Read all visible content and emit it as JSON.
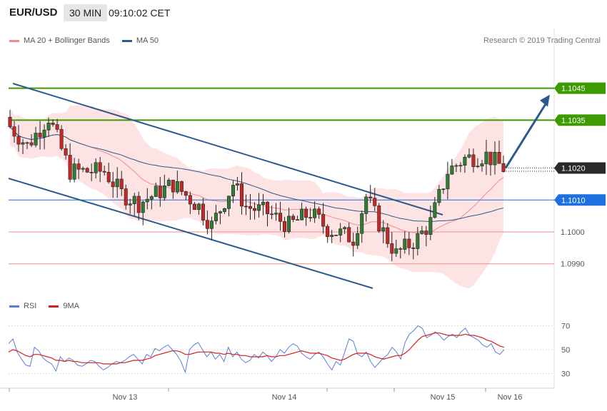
{
  "header": {
    "pair": "EUR/USD",
    "timeframe": "30 MIN",
    "time": "09:10:02 CET"
  },
  "legend": {
    "items": [
      {
        "label": "MA 20 + Bollinger Bands",
        "color": "#f08c8c"
      },
      {
        "label": "MA 50",
        "color": "#2b5a8c"
      }
    ]
  },
  "credit": "Research © 2019 Trading Central",
  "rsi_legend": {
    "items": [
      {
        "label": "RSI",
        "color": "#5a7fd6"
      },
      {
        "label": "9MA",
        "color": "#d42020"
      }
    ]
  },
  "price_tags": [
    {
      "label": "1.1045",
      "value": 1.1045,
      "color": "#3d9a00"
    },
    {
      "label": "1.1035",
      "value": 1.1035,
      "color": "#3d9a00"
    },
    {
      "label": "1.1020",
      "value": 1.102,
      "color": "#2a2a2a"
    },
    {
      "label": "1.1010",
      "value": 1.101,
      "color": "#1e6fe0"
    }
  ],
  "chart_data": {
    "type": "candlestick",
    "y_axis_ticks": [
      "1.1000",
      "1.0990"
    ],
    "ylim": [
      1.0981,
      1.1057
    ],
    "x_ticks": [
      "Nov 13",
      "Nov 14",
      "Nov 15",
      "Nov 16"
    ],
    "levels": {
      "resistance": [
        1.1045,
        1.1035
      ],
      "pivot": 1.101,
      "current": 1.102,
      "support_lines": [
        1.1,
        1.099
      ]
    },
    "forecast_target": 1.1043,
    "rsi": {
      "ylim": [
        20,
        80
      ],
      "ticks": [
        "70",
        "50",
        "30"
      ],
      "rsi_values": [
        55,
        59,
        48,
        42,
        37,
        36,
        52,
        49,
        43,
        40,
        38,
        32,
        44,
        40,
        43,
        41,
        37,
        36,
        38,
        41,
        40,
        36,
        33,
        35,
        38,
        40,
        39,
        41,
        44,
        46,
        42,
        38,
        46,
        44,
        51,
        49,
        52,
        54,
        50,
        46,
        40,
        31,
        50,
        54,
        56,
        50,
        44,
        48,
        42,
        46,
        40,
        52,
        44,
        48,
        42,
        39,
        41,
        46,
        43,
        48,
        45,
        40,
        44,
        50,
        47,
        52,
        55,
        53,
        47,
        44,
        42,
        46,
        48,
        44,
        38,
        33,
        40,
        37,
        48,
        59,
        57,
        46,
        44,
        48,
        40,
        35,
        39,
        43,
        46,
        52,
        48,
        42,
        56,
        63,
        66,
        70,
        68,
        60,
        62,
        65,
        62,
        58,
        61,
        63,
        60,
        65,
        68,
        62,
        60,
        58,
        54,
        52,
        55,
        48,
        46,
        50
      ],
      "ma_values": [
        48,
        50,
        49,
        47,
        45,
        44,
        46,
        46,
        45,
        44,
        43,
        41,
        41,
        40,
        41,
        40,
        40,
        39,
        39,
        39,
        39,
        39,
        38,
        38,
        38,
        38,
        39,
        39,
        40,
        41,
        41,
        41,
        42,
        43,
        45,
        46,
        47,
        48,
        49,
        49,
        48,
        46,
        46,
        47,
        48,
        48,
        48,
        48,
        47,
        47,
        46,
        47,
        46,
        46,
        45,
        45,
        44,
        44,
        44,
        44,
        45,
        44,
        44,
        45,
        45,
        46,
        47,
        48,
        49,
        48,
        47,
        47,
        47,
        46,
        45,
        43,
        42,
        41,
        42,
        44,
        46,
        47,
        47,
        47,
        46,
        44,
        43,
        42,
        43,
        44,
        45,
        45,
        47,
        50,
        54,
        58,
        61,
        62,
        63,
        64,
        64,
        63,
        62,
        62,
        62,
        62,
        63,
        62,
        62,
        61,
        60,
        58,
        57,
        55,
        53,
        52
      ]
    }
  }
}
